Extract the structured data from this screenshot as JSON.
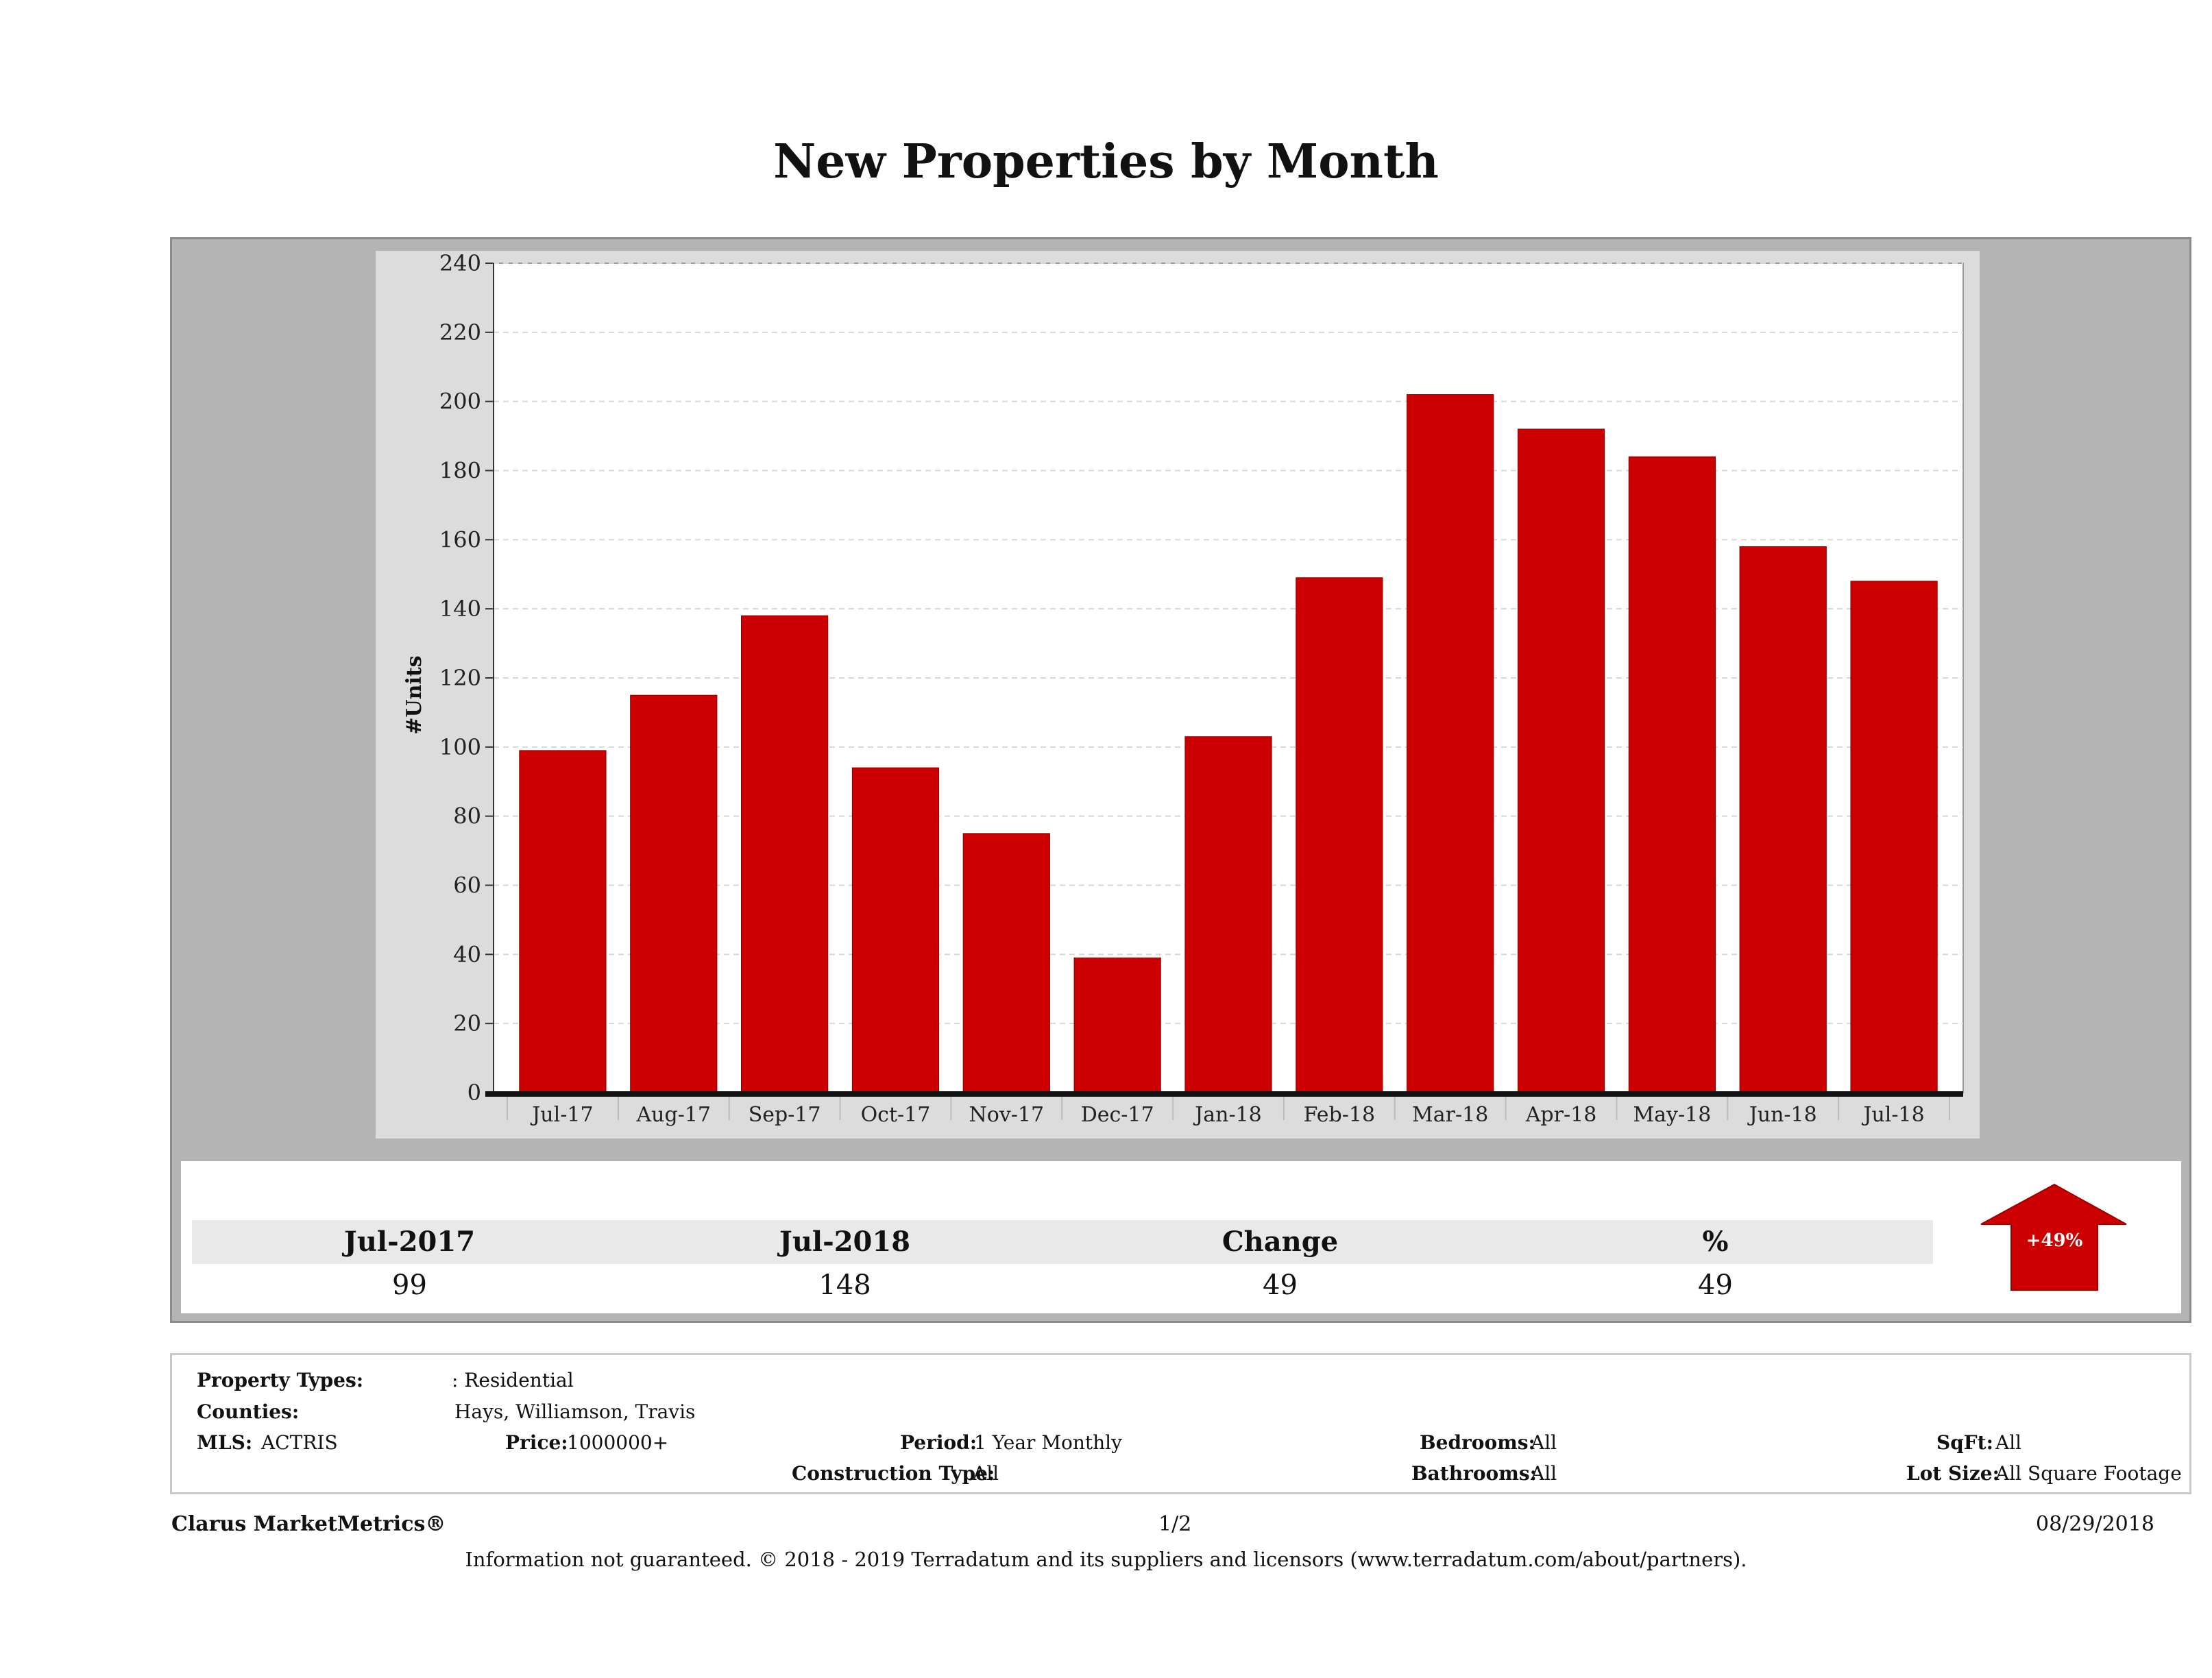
{
  "chart_data": {
    "type": "bar",
    "title": "New Properties by Month",
    "ylabel": "#Units",
    "xlabel": "",
    "ylim": [
      0,
      240
    ],
    "yticks": [
      0,
      20,
      40,
      60,
      80,
      100,
      120,
      140,
      160,
      180,
      200,
      220,
      240
    ],
    "grid": true,
    "categories": [
      "Jul-17",
      "Aug-17",
      "Sep-17",
      "Oct-17",
      "Nov-17",
      "Dec-17",
      "Jan-18",
      "Feb-18",
      "Mar-18",
      "Apr-18",
      "May-18",
      "Jun-18",
      "Jul-18"
    ],
    "values": [
      99,
      115,
      138,
      94,
      75,
      39,
      103,
      149,
      202,
      192,
      184,
      158,
      148
    ],
    "bar_color": "#cc0000"
  },
  "summary": {
    "headers": [
      "Jul-2017",
      "Jul-2018",
      "Change",
      "%"
    ],
    "values": [
      "99",
      "148",
      "49",
      "49"
    ],
    "badge": "+49%",
    "badge_icon": "up-arrow-icon"
  },
  "criteria": {
    "property_types_label": "Property Types:",
    "property_types_value": ": Residential",
    "counties_label": "Counties:",
    "counties_value": "Hays, Williamson, Travis",
    "mls_label": "MLS:",
    "mls_value": "ACTRIS",
    "price_label": "Price:",
    "price_value": "1000000+",
    "period_label": "Period:",
    "period_value": "1 Year Monthly",
    "construction_label": "Construction Type:",
    "construction_value": "All",
    "bedrooms_label": "Bedrooms:",
    "bedrooms_value": "All",
    "bathrooms_label": "Bathrooms:",
    "bathrooms_value": "All",
    "sqft_label": "SqFt:",
    "sqft_value": "All",
    "lotsize_label": "Lot Size:",
    "lotsize_value": "All Square Footage"
  },
  "footer": {
    "brand": "Clarus MarketMetrics®",
    "page": "1/2",
    "date": "08/29/2018",
    "disclaimer": "Information not guaranteed. © 2018 - 2019 Terradatum and its suppliers and licensors (www.terradatum.com/about/partners)."
  }
}
